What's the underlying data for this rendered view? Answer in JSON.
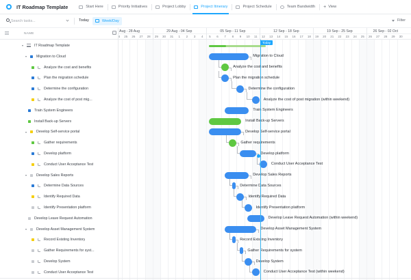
{
  "app": {
    "title": "IT Roadmap Template",
    "brand_color": "#1ea7fd"
  },
  "tabs": [
    {
      "label": "Start Here",
      "icon": "doc-icon",
      "active": false
    },
    {
      "label": "Priority Initiatives",
      "icon": "list-icon",
      "active": false
    },
    {
      "label": "Project Lobby",
      "icon": "board-icon",
      "active": false
    },
    {
      "label": "Project Itinerary",
      "icon": "gantt-icon",
      "active": true
    },
    {
      "label": "Project Schedule",
      "icon": "gantt-icon",
      "active": false
    },
    {
      "label": "Team Bandwidth",
      "icon": "workload-icon",
      "active": false
    }
  ],
  "add_view_label": "View",
  "toolbar": {
    "search_placeholder": "Search tasks...",
    "search_value": "",
    "today_label": "Today",
    "scale_label": "Week/Day",
    "filter_label": "Filter"
  },
  "left_panel": {
    "column_header": "NAME"
  },
  "timeline": {
    "weeks": [
      {
        "label": "Aug - 28 Aug",
        "start_day_index": 0
      },
      {
        "label": "29 Aug - 04 Sep",
        "start_day_index": 5
      },
      {
        "label": "05 Sep - 11 Sep",
        "start_day_index": 12
      },
      {
        "label": "12 Sep - 18 Sep",
        "start_day_index": 19
      },
      {
        "label": "19 Sep - 25 Sep",
        "start_day_index": 26
      },
      {
        "label": "26 Sep - 02 Oct",
        "start_day_index": 33
      }
    ],
    "days": [
      "24",
      "25",
      "26",
      "27",
      "28",
      "29",
      "30",
      "31",
      "1",
      "2",
      "3",
      "4",
      "5",
      "6",
      "7",
      "8",
      "9",
      "10",
      "11",
      "12",
      "13",
      "14",
      "15",
      "16",
      "17",
      "18",
      "19",
      "20",
      "21",
      "22",
      "23",
      "24",
      "25",
      "26",
      "27",
      "28",
      "29",
      "30"
    ],
    "today_label": "Today",
    "today_day_index": 19
  },
  "status_colors": {
    "blue": "#2b7bd6",
    "green": "#5fc842",
    "yellow": "#f5cf10",
    "gray": "#c8cbd0"
  },
  "rows": [
    {
      "name": "IT Roadmap Template",
      "level": 0,
      "type": "list",
      "caret": true,
      "status": null
    },
    {
      "name": "Migration to Cloud",
      "level": 1,
      "type": "task",
      "caret": true,
      "status": "blue"
    },
    {
      "name": "Analyze the cost and benefits",
      "level": 2,
      "type": "subtask",
      "status": "green"
    },
    {
      "name": "Plan the migration schedule",
      "level": 2,
      "type": "subtask",
      "status": "blue"
    },
    {
      "name": "Determine the configuration",
      "level": 2,
      "type": "subtask",
      "status": "blue"
    },
    {
      "name": "Analyze the cost of post mig...",
      "level": 2,
      "type": "subtask",
      "status": "yellow"
    },
    {
      "name": "Train System Engineers",
      "level": 1,
      "type": "task",
      "caret": false,
      "status": "blue"
    },
    {
      "name": "Install Back-up Servers",
      "level": 1,
      "type": "task",
      "caret": false,
      "status": "green"
    },
    {
      "name": "Develop Self-service portal",
      "level": 1,
      "type": "task",
      "caret": true,
      "status": "yellow"
    },
    {
      "name": "Gather requirements",
      "level": 2,
      "type": "subtask",
      "status": "green"
    },
    {
      "name": "Develop platform",
      "level": 2,
      "type": "subtask",
      "status": "blue"
    },
    {
      "name": "Conduct User Acceptance Test",
      "level": 2,
      "type": "subtask",
      "status": "yellow"
    },
    {
      "name": "Develop Sales Reports",
      "level": 1,
      "type": "task",
      "caret": true,
      "status": "gray"
    },
    {
      "name": "Determine Data Sources",
      "level": 2,
      "type": "subtask",
      "status": "blue"
    },
    {
      "name": "Identify Required Data",
      "level": 2,
      "type": "subtask",
      "status": "yellow"
    },
    {
      "name": "Identify Presentation platform",
      "level": 2,
      "type": "subtask",
      "status": "gray"
    },
    {
      "name": "Develop Leave Request Automation",
      "level": 1,
      "type": "task",
      "caret": false,
      "status": "gray"
    },
    {
      "name": "Develop Asset Management System",
      "level": 1,
      "type": "task",
      "caret": true,
      "status": "gray"
    },
    {
      "name": "Record Existing Inventory",
      "level": 2,
      "type": "subtask",
      "status": "yellow"
    },
    {
      "name": "Gather Requirements for syst...",
      "level": 2,
      "type": "subtask",
      "status": "gray"
    },
    {
      "name": "Develop System",
      "level": 2,
      "type": "subtask",
      "status": "gray"
    },
    {
      "name": "Conduct User Acceptance Test",
      "level": 2,
      "type": "subtask",
      "status": "gray"
    }
  ],
  "gantt_items": [
    {
      "row": 0,
      "kind": "summary",
      "start": 12.4,
      "end": 19.8,
      "progress": 0.3,
      "label": ""
    },
    {
      "row": 1,
      "kind": "bar",
      "start": 12.4,
      "end": 17.6,
      "color": "#3a8ef0",
      "label": "Migration to Cloud"
    },
    {
      "row": 2,
      "kind": "milestone",
      "start": 14.5,
      "color": "#5fc842",
      "label": "Analyze the cost and benefits"
    },
    {
      "row": 3,
      "kind": "milestone",
      "start": 14.5,
      "color": "#3a8ef0",
      "label": "Plan the migration schedule"
    },
    {
      "row": 4,
      "kind": "milestone",
      "start": 16.5,
      "color": "#3a8ef0",
      "label": "Determine the configuration"
    },
    {
      "row": 5,
      "kind": "milestone",
      "start": 18.5,
      "color": "#3a8ef0",
      "label": "Analyze the cost of post migration (within weekend)"
    },
    {
      "row": 6,
      "kind": "bar",
      "start": 14.4,
      "end": 17.6,
      "color": "#3a8ef0",
      "label": "Train System Engineers"
    },
    {
      "row": 7,
      "kind": "bar",
      "start": 12.4,
      "end": 16.6,
      "color": "#5fc842",
      "label": "Install Back-up Servers"
    },
    {
      "row": 8,
      "kind": "bar",
      "start": 12.4,
      "end": 16.6,
      "color": "#3a8ef0",
      "label": "Develop Self-service portal"
    },
    {
      "row": 9,
      "kind": "milestone",
      "start": 15.5,
      "color": "#5fc842",
      "label": "Gather requirements"
    },
    {
      "row": 10,
      "kind": "bar",
      "start": 16.4,
      "end": 18.6,
      "color": "#3a8ef0",
      "label": "Develop platform"
    },
    {
      "row": 11,
      "kind": "milestone",
      "start": 19.5,
      "color": "#3a8ef0",
      "label": "Conduct User Acceptance Test"
    },
    {
      "row": 12,
      "kind": "bar",
      "start": 14.4,
      "end": 17.6,
      "color": "#3a8ef0",
      "label": "Develop Sales Reports"
    },
    {
      "row": 13,
      "kind": "bar",
      "start": 15.4,
      "end": 15.9,
      "color": "#3a8ef0",
      "label": "Determine Data Sources"
    },
    {
      "row": 14,
      "kind": "milestone",
      "start": 16.5,
      "color": "#3a8ef0",
      "label": "Identify Required Data"
    },
    {
      "row": 15,
      "kind": "milestone",
      "start": 17.5,
      "color": "#3a8ef0",
      "label": "Identify Presentation platform"
    },
    {
      "row": 16,
      "kind": "bar",
      "start": 17.4,
      "end": 19.6,
      "color": "#3a8ef0",
      "label": "Develop Leave Request Automation (within weekend)"
    },
    {
      "row": 17,
      "kind": "bar",
      "start": 14.4,
      "end": 18.6,
      "color": "#3a8ef0",
      "label": "Develop Asset Management System"
    },
    {
      "row": 18,
      "kind": "bar",
      "start": 15.4,
      "end": 15.9,
      "color": "#3a8ef0",
      "label": "Record Existing Inventory"
    },
    {
      "row": 19,
      "kind": "bar",
      "start": 16.4,
      "end": 16.9,
      "color": "#3a8ef0",
      "label": "Gather Requirements for system"
    },
    {
      "row": 20,
      "kind": "milestone",
      "start": 17.5,
      "color": "#3a8ef0",
      "label": "Develop System"
    },
    {
      "row": 21,
      "kind": "milestone",
      "start": 18.5,
      "color": "#3a8ef0",
      "label": "Conduct User Acceptance Test (within weekend)"
    }
  ]
}
